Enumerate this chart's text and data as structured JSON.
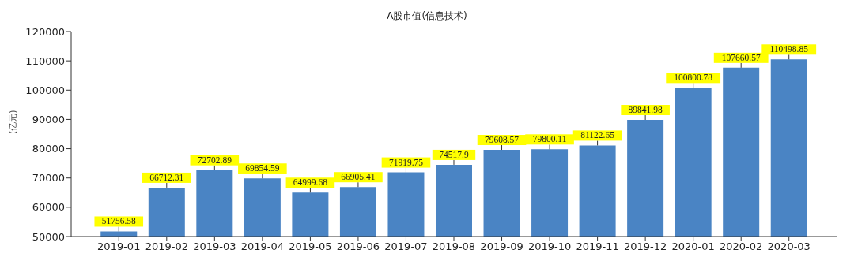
{
  "chart_data": {
    "type": "bar",
    "title": "A股市值(信息技术)",
    "ylabel": "(亿元)",
    "categories": [
      "2019-01",
      "2019-02",
      "2019-03",
      "2019-04",
      "2019-05",
      "2019-06",
      "2019-07",
      "2019-08",
      "2019-09",
      "2019-10",
      "2019-11",
      "2019-12",
      "2020-01",
      "2020-02",
      "2020-03"
    ],
    "values": [
      51756.58,
      66712.31,
      72702.89,
      69854.59,
      64999.68,
      66905.41,
      71919.75,
      74517.9,
      79608.57,
      79800.11,
      81122.65,
      89841.98,
      100800.78,
      107660.57,
      110498.85
    ],
    "color": "#4a84c4",
    "data_labels": true,
    "ylim": [
      50000,
      120000
    ],
    "yticks": [
      50000,
      60000,
      70000,
      80000,
      90000,
      100000,
      110000,
      120000
    ],
    "grid": false
  }
}
